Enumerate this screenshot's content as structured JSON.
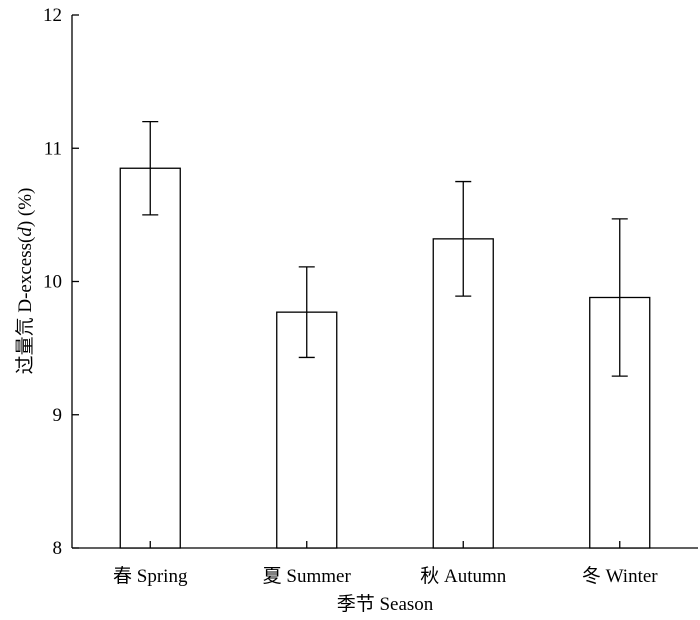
{
  "chart_data": {
    "type": "bar",
    "title": "",
    "xlabel": "季节 Season",
    "ylabel_prefix": "过量氘 D-excess(",
    "ylabel_italic": "d",
    "ylabel_suffix": ") (%)",
    "categories": [
      "春 Spring",
      "夏 Summer",
      "秋 Autumn",
      "冬 Winter"
    ],
    "values": [
      10.85,
      9.77,
      10.32,
      9.88
    ],
    "error_low": [
      10.5,
      9.43,
      9.89,
      9.29
    ],
    "error_high": [
      11.2,
      10.11,
      10.75,
      10.47
    ],
    "ylim": [
      8,
      12
    ],
    "yticks": [
      "8",
      "9",
      "10",
      "11",
      "12"
    ],
    "grid": false,
    "bar_fill": "#ffffff",
    "stroke_color": "#000000"
  }
}
